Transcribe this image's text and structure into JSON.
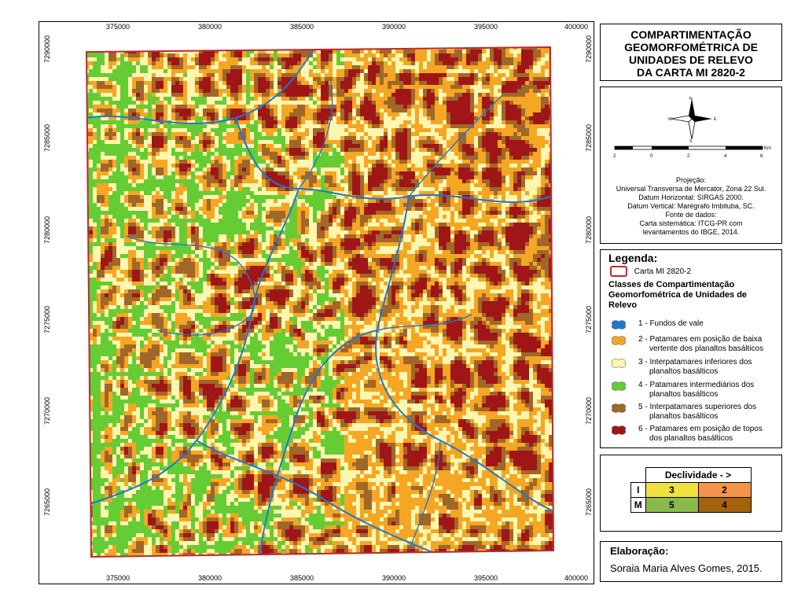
{
  "map": {
    "x_ticks": [
      "375000",
      "380000",
      "385000",
      "390000",
      "395000",
      "400000"
    ],
    "y_ticks": [
      "7290000",
      "7285000",
      "7280000",
      "7275000",
      "7270000",
      "7265000"
    ],
    "boundary_color": "#c1272d"
  },
  "title": {
    "lines": [
      "COMPARTIMENTAÇÃO",
      "GEOMORFOMÉTRICA DE",
      "UNIDADES DE RELEVO",
      "DA CARTA MI 2820-2"
    ]
  },
  "info": {
    "north_arrow_icon": "north-arrow-icon",
    "north_label": "N",
    "south_label": "S",
    "east_label": "E",
    "west_label": "W",
    "scale_labels": [
      "2",
      "0",
      "2",
      "4",
      "6"
    ],
    "scale_unit": "Km",
    "lines": [
      "Projeção:",
      "Universal Transversa de Mercator, Zona 22 Sul.",
      "Datum Horizontal: SIRGAS 2000.",
      "Datum Vertical: Marégrafo Imbituba, SC.",
      "Fonte de dados:",
      "Carta sistemática: ITCG-PR com",
      "levantamentos do IBGE, 2014."
    ]
  },
  "legend": {
    "title": "Legenda:",
    "boundary_label": "Carta MI 2820-2",
    "classes_title_lines": [
      "Classes de Compartimentação",
      "Geomorfométrica de Unidades de",
      "Relevo"
    ],
    "items": [
      {
        "lines": [
          "1 - Fundos de vale"
        ],
        "color": "#1f78d1"
      },
      {
        "lines": [
          "2 - Patamares em posição de baixa",
          "vertente dos planaltos basálticos"
        ],
        "color": "#f5a623"
      },
      {
        "lines": [
          "3 - Interpatamares inferiores dos",
          "planaltos basálticos"
        ],
        "color": "#fdf6b0"
      },
      {
        "lines": [
          "4 - Patamares intermediários dos",
          "planaltos basálticos"
        ],
        "color": "#66cc33"
      },
      {
        "lines": [
          "5 - Interpatamares superiores dos",
          "planaltos basálticos"
        ],
        "color": "#a0672a"
      },
      {
        "lines": [
          "6 - Patamares em posição de topos",
          "dos planaltos basálticos"
        ],
        "color": "#a01616"
      }
    ]
  },
  "declividade": {
    "header": "Declividade - >",
    "rows": [
      {
        "label": "I",
        "cells": [
          {
            "text": "3",
            "color": "#f0e040"
          },
          {
            "text": "2",
            "color": "#f4944c"
          }
        ]
      },
      {
        "label": "M",
        "cells": [
          {
            "text": "5",
            "color": "#8cb84c"
          },
          {
            "text": "4",
            "color": "#a4620c"
          }
        ]
      }
    ]
  },
  "credits": {
    "title": "Elaboração:",
    "author": "Soraia Maria Alves Gomes, 2015."
  }
}
